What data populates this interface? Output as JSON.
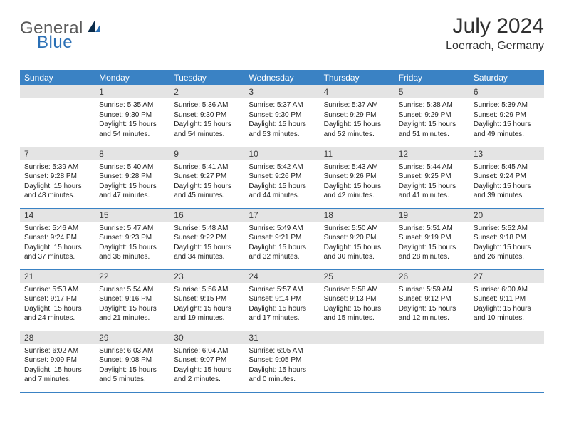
{
  "brand": {
    "part1": "General",
    "part2": "Blue"
  },
  "title": "July 2024",
  "location": "Loerrach, Germany",
  "colors": {
    "header_bg": "#3a82c4",
    "header_fg": "#ffffff",
    "daynum_bg": "#e4e4e4",
    "rule": "#3a82c4",
    "brand_gray": "#5a5a5a",
    "brand_blue": "#2a6fb5",
    "logo_dark": "#0a2b4a"
  },
  "weekdays": [
    "Sunday",
    "Monday",
    "Tuesday",
    "Wednesday",
    "Thursday",
    "Friday",
    "Saturday"
  ],
  "weeks": [
    [
      null,
      {
        "n": "1",
        "sr": "5:35 AM",
        "ss": "9:30 PM",
        "dl": "15 hours and 54 minutes."
      },
      {
        "n": "2",
        "sr": "5:36 AM",
        "ss": "9:30 PM",
        "dl": "15 hours and 54 minutes."
      },
      {
        "n": "3",
        "sr": "5:37 AM",
        "ss": "9:30 PM",
        "dl": "15 hours and 53 minutes."
      },
      {
        "n": "4",
        "sr": "5:37 AM",
        "ss": "9:29 PM",
        "dl": "15 hours and 52 minutes."
      },
      {
        "n": "5",
        "sr": "5:38 AM",
        "ss": "9:29 PM",
        "dl": "15 hours and 51 minutes."
      },
      {
        "n": "6",
        "sr": "5:39 AM",
        "ss": "9:29 PM",
        "dl": "15 hours and 49 minutes."
      }
    ],
    [
      {
        "n": "7",
        "sr": "5:39 AM",
        "ss": "9:28 PM",
        "dl": "15 hours and 48 minutes."
      },
      {
        "n": "8",
        "sr": "5:40 AM",
        "ss": "9:28 PM",
        "dl": "15 hours and 47 minutes."
      },
      {
        "n": "9",
        "sr": "5:41 AM",
        "ss": "9:27 PM",
        "dl": "15 hours and 45 minutes."
      },
      {
        "n": "10",
        "sr": "5:42 AM",
        "ss": "9:26 PM",
        "dl": "15 hours and 44 minutes."
      },
      {
        "n": "11",
        "sr": "5:43 AM",
        "ss": "9:26 PM",
        "dl": "15 hours and 42 minutes."
      },
      {
        "n": "12",
        "sr": "5:44 AM",
        "ss": "9:25 PM",
        "dl": "15 hours and 41 minutes."
      },
      {
        "n": "13",
        "sr": "5:45 AM",
        "ss": "9:24 PM",
        "dl": "15 hours and 39 minutes."
      }
    ],
    [
      {
        "n": "14",
        "sr": "5:46 AM",
        "ss": "9:24 PM",
        "dl": "15 hours and 37 minutes."
      },
      {
        "n": "15",
        "sr": "5:47 AM",
        "ss": "9:23 PM",
        "dl": "15 hours and 36 minutes."
      },
      {
        "n": "16",
        "sr": "5:48 AM",
        "ss": "9:22 PM",
        "dl": "15 hours and 34 minutes."
      },
      {
        "n": "17",
        "sr": "5:49 AM",
        "ss": "9:21 PM",
        "dl": "15 hours and 32 minutes."
      },
      {
        "n": "18",
        "sr": "5:50 AM",
        "ss": "9:20 PM",
        "dl": "15 hours and 30 minutes."
      },
      {
        "n": "19",
        "sr": "5:51 AM",
        "ss": "9:19 PM",
        "dl": "15 hours and 28 minutes."
      },
      {
        "n": "20",
        "sr": "5:52 AM",
        "ss": "9:18 PM",
        "dl": "15 hours and 26 minutes."
      }
    ],
    [
      {
        "n": "21",
        "sr": "5:53 AM",
        "ss": "9:17 PM",
        "dl": "15 hours and 24 minutes."
      },
      {
        "n": "22",
        "sr": "5:54 AM",
        "ss": "9:16 PM",
        "dl": "15 hours and 21 minutes."
      },
      {
        "n": "23",
        "sr": "5:56 AM",
        "ss": "9:15 PM",
        "dl": "15 hours and 19 minutes."
      },
      {
        "n": "24",
        "sr": "5:57 AM",
        "ss": "9:14 PM",
        "dl": "15 hours and 17 minutes."
      },
      {
        "n": "25",
        "sr": "5:58 AM",
        "ss": "9:13 PM",
        "dl": "15 hours and 15 minutes."
      },
      {
        "n": "26",
        "sr": "5:59 AM",
        "ss": "9:12 PM",
        "dl": "15 hours and 12 minutes."
      },
      {
        "n": "27",
        "sr": "6:00 AM",
        "ss": "9:11 PM",
        "dl": "15 hours and 10 minutes."
      }
    ],
    [
      {
        "n": "28",
        "sr": "6:02 AM",
        "ss": "9:09 PM",
        "dl": "15 hours and 7 minutes."
      },
      {
        "n": "29",
        "sr": "6:03 AM",
        "ss": "9:08 PM",
        "dl": "15 hours and 5 minutes."
      },
      {
        "n": "30",
        "sr": "6:04 AM",
        "ss": "9:07 PM",
        "dl": "15 hours and 2 minutes."
      },
      {
        "n": "31",
        "sr": "6:05 AM",
        "ss": "9:05 PM",
        "dl": "15 hours and 0 minutes."
      },
      null,
      null,
      null
    ]
  ],
  "labels": {
    "sunrise": "Sunrise: ",
    "sunset": "Sunset: ",
    "daylight": "Daylight: "
  }
}
